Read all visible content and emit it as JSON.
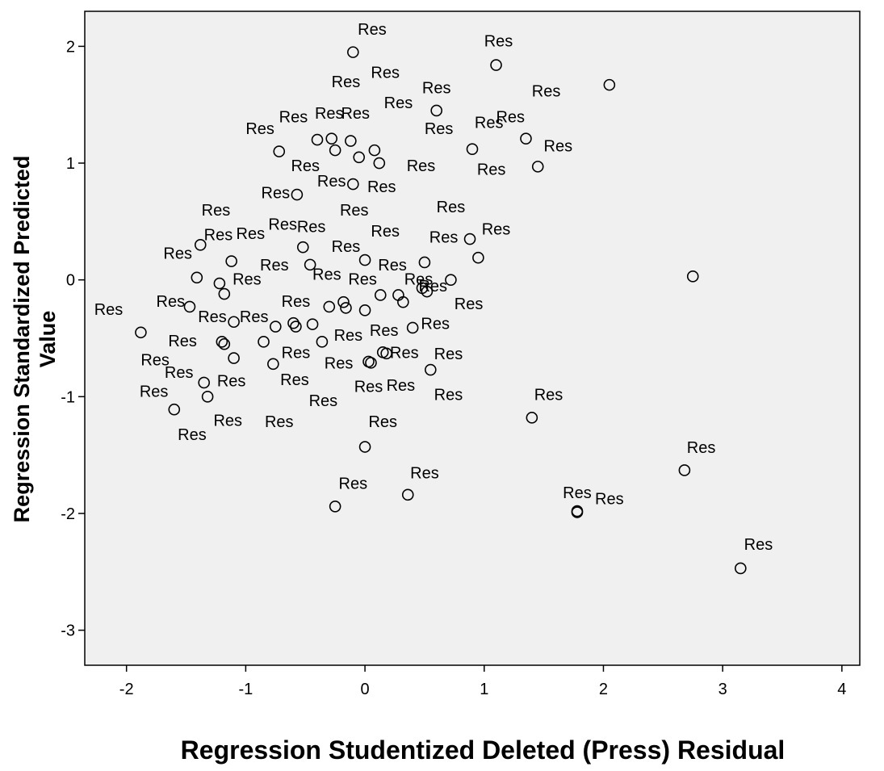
{
  "chart_data": {
    "type": "scatter",
    "xlabel": "Regression Studentized Deleted (Press) Residual",
    "ylabel_lines": [
      "Regression Standardized Predicted",
      "Value"
    ],
    "xlim": [
      -2.35,
      4.15
    ],
    "ylim": [
      -3.3,
      2.3
    ],
    "xticks": [
      -2,
      -1,
      0,
      1,
      2,
      3,
      4
    ],
    "yticks": [
      2,
      1,
      0,
      -1,
      -2,
      -3
    ],
    "grid": false,
    "background": "#f0f0f0",
    "marker": "open-circle",
    "point_label": "Res",
    "points": [
      {
        "x": -0.1,
        "y": 1.95
      },
      {
        "x": 1.1,
        "y": 1.84
      },
      {
        "x": 2.05,
        "y": 1.67
      },
      {
        "x": 0.6,
        "y": 1.45
      },
      {
        "x": 1.35,
        "y": 1.21
      },
      {
        "x": 0.9,
        "y": 1.12
      },
      {
        "x": 1.45,
        "y": 0.97
      },
      {
        "x": -0.4,
        "y": 1.2
      },
      {
        "x": -0.28,
        "y": 1.21
      },
      {
        "x": -0.12,
        "y": 1.19
      },
      {
        "x": -0.25,
        "y": 1.11
      },
      {
        "x": 0.08,
        "y": 1.11
      },
      {
        "x": -0.72,
        "y": 1.1
      },
      {
        "x": -0.05,
        "y": 1.05
      },
      {
        "x": 0.12,
        "y": 1.0
      },
      {
        "x": -0.1,
        "y": 0.82
      },
      {
        "x": -0.57,
        "y": 0.73
      },
      {
        "x": -1.38,
        "y": 0.3
      },
      {
        "x": 0.88,
        "y": 0.35
      },
      {
        "x": 0.95,
        "y": 0.19
      },
      {
        "x": -0.52,
        "y": 0.28
      },
      {
        "x": -1.12,
        "y": 0.16
      },
      {
        "x": -0.46,
        "y": 0.13
      },
      {
        "x": 0.0,
        "y": 0.17
      },
      {
        "x": 0.5,
        "y": 0.15
      },
      {
        "x": 2.75,
        "y": 0.03
      },
      {
        "x": -1.41,
        "y": 0.02
      },
      {
        "x": -1.22,
        "y": -0.03
      },
      {
        "x": 0.72,
        "y": 0.0
      },
      {
        "x": -1.18,
        "y": -0.12
      },
      {
        "x": 0.13,
        "y": -0.13
      },
      {
        "x": 0.28,
        "y": -0.13
      },
      {
        "x": 0.48,
        "y": -0.07
      },
      {
        "x": 0.52,
        "y": -0.1
      },
      {
        "x": -0.18,
        "y": -0.19
      },
      {
        "x": 0.32,
        "y": -0.19
      },
      {
        "x": -1.47,
        "y": -0.23
      },
      {
        "x": -0.3,
        "y": -0.23
      },
      {
        "x": -0.16,
        "y": -0.24
      },
      {
        "x": 0.0,
        "y": -0.26
      },
      {
        "x": -1.1,
        "y": -0.36
      },
      {
        "x": -0.6,
        "y": -0.37
      },
      {
        "x": -0.44,
        "y": -0.38
      },
      {
        "x": -0.75,
        "y": -0.4
      },
      {
        "x": -0.58,
        "y": -0.4
      },
      {
        "x": 0.4,
        "y": -0.41
      },
      {
        "x": -1.88,
        "y": -0.45
      },
      {
        "x": -0.85,
        "y": -0.53
      },
      {
        "x": -0.36,
        "y": -0.53
      },
      {
        "x": -1.2,
        "y": -0.53
      },
      {
        "x": -1.18,
        "y": -0.55
      },
      {
        "x": 0.15,
        "y": -0.62
      },
      {
        "x": 0.18,
        "y": -0.63
      },
      {
        "x": -1.1,
        "y": -0.67
      },
      {
        "x": 0.03,
        "y": -0.7
      },
      {
        "x": 0.05,
        "y": -0.71
      },
      {
        "x": -0.77,
        "y": -0.72
      },
      {
        "x": 0.55,
        "y": -0.77
      },
      {
        "x": -1.35,
        "y": -0.88
      },
      {
        "x": -1.32,
        "y": -1.0
      },
      {
        "x": -1.6,
        "y": -1.11
      },
      {
        "x": 1.4,
        "y": -1.18
      },
      {
        "x": 0.0,
        "y": -1.43
      },
      {
        "x": 2.68,
        "y": -1.63
      },
      {
        "x": 0.36,
        "y": -1.84
      },
      {
        "x": 1.78,
        "y": -1.98
      },
      {
        "x": 1.78,
        "y": -1.99
      },
      {
        "x": -0.25,
        "y": -1.94
      },
      {
        "x": 3.15,
        "y": -2.47
      }
    ],
    "extra_labels": [
      {
        "x": 0.06,
        "y": 2.1
      },
      {
        "x": 1.12,
        "y": 2.0
      },
      {
        "x": -0.16,
        "y": 1.65
      },
      {
        "x": 0.17,
        "y": 1.73
      },
      {
        "x": 0.6,
        "y": 1.6
      },
      {
        "x": 1.52,
        "y": 1.57
      },
      {
        "x": 0.28,
        "y": 1.47
      },
      {
        "x": -0.3,
        "y": 1.38
      },
      {
        "x": -0.08,
        "y": 1.38
      },
      {
        "x": 1.22,
        "y": 1.35
      },
      {
        "x": -0.6,
        "y": 1.35
      },
      {
        "x": 1.04,
        "y": 1.3
      },
      {
        "x": -0.88,
        "y": 1.25
      },
      {
        "x": 0.62,
        "y": 1.25
      },
      {
        "x": 1.62,
        "y": 1.1
      },
      {
        "x": -0.5,
        "y": 0.93
      },
      {
        "x": 0.47,
        "y": 0.93
      },
      {
        "x": 1.06,
        "y": 0.9
      },
      {
        "x": -0.28,
        "y": 0.8
      },
      {
        "x": 0.14,
        "y": 0.75
      },
      {
        "x": -0.75,
        "y": 0.7
      },
      {
        "x": -1.25,
        "y": 0.55
      },
      {
        "x": -0.09,
        "y": 0.55
      },
      {
        "x": 0.72,
        "y": 0.58
      },
      {
        "x": -0.69,
        "y": 0.43
      },
      {
        "x": -0.45,
        "y": 0.41
      },
      {
        "x": -1.23,
        "y": 0.34
      },
      {
        "x": -0.96,
        "y": 0.35
      },
      {
        "x": 0.17,
        "y": 0.37
      },
      {
        "x": 1.1,
        "y": 0.39
      },
      {
        "x": -1.57,
        "y": 0.18
      },
      {
        "x": -0.16,
        "y": 0.24
      },
      {
        "x": 0.66,
        "y": 0.32
      },
      {
        "x": -0.76,
        "y": 0.08
      },
      {
        "x": 0.23,
        "y": 0.08
      },
      {
        "x": -0.99,
        "y": -0.04
      },
      {
        "x": -0.32,
        "y": 0.0
      },
      {
        "x": -0.02,
        "y": -0.04
      },
      {
        "x": 0.45,
        "y": -0.04
      },
      {
        "x": 0.57,
        "y": -0.1
      },
      {
        "x": -2.15,
        "y": -0.3
      },
      {
        "x": -1.63,
        "y": -0.23
      },
      {
        "x": -0.58,
        "y": -0.23
      },
      {
        "x": 0.87,
        "y": -0.25
      },
      {
        "x": -1.28,
        "y": -0.36
      },
      {
        "x": -0.93,
        "y": -0.36
      },
      {
        "x": 0.59,
        "y": -0.42
      },
      {
        "x": -1.53,
        "y": -0.57
      },
      {
        "x": -0.14,
        "y": -0.52
      },
      {
        "x": 0.16,
        "y": -0.48
      },
      {
        "x": -0.58,
        "y": -0.67
      },
      {
        "x": 0.33,
        "y": -0.67
      },
      {
        "x": -1.76,
        "y": -0.73
      },
      {
        "x": -0.22,
        "y": -0.76
      },
      {
        "x": 0.7,
        "y": -0.68
      },
      {
        "x": -1.56,
        "y": -0.84
      },
      {
        "x": -1.12,
        "y": -0.91
      },
      {
        "x": -0.59,
        "y": -0.9
      },
      {
        "x": -1.77,
        "y": -1.0
      },
      {
        "x": -0.35,
        "y": -1.08
      },
      {
        "x": 0.03,
        "y": -0.96
      },
      {
        "x": 0.3,
        "y": -0.95
      },
      {
        "x": 0.7,
        "y": -1.03
      },
      {
        "x": 1.54,
        "y": -1.03
      },
      {
        "x": -1.15,
        "y": -1.25
      },
      {
        "x": -0.72,
        "y": -1.26
      },
      {
        "x": -1.45,
        "y": -1.37
      },
      {
        "x": 0.15,
        "y": -1.26
      },
      {
        "x": 2.82,
        "y": -1.48
      },
      {
        "x": 0.5,
        "y": -1.7
      },
      {
        "x": -0.1,
        "y": -1.79
      },
      {
        "x": 1.78,
        "y": -1.87
      },
      {
        "x": 2.05,
        "y": -1.92
      },
      {
        "x": 3.3,
        "y": -2.31
      }
    ]
  }
}
